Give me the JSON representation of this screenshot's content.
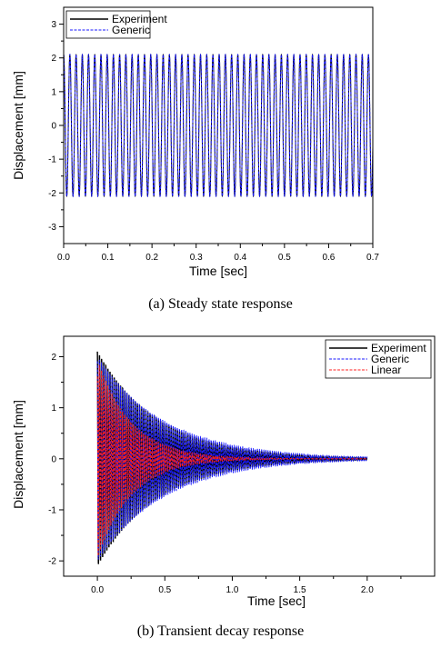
{
  "chart_data": [
    {
      "type": "line",
      "caption": "(a) Steady state response",
      "xlabel": "Time [sec]",
      "ylabel": "Displacement [mm]",
      "xlim": [
        0.0,
        0.7
      ],
      "ylim": [
        -3.5,
        3.5
      ],
      "xticks": [
        "0.0",
        "0.1",
        "0.2",
        "0.3",
        "0.4",
        "0.5",
        "0.6",
        "0.7"
      ],
      "yticks": [
        "-3",
        "-2",
        "-1",
        "0",
        "1",
        "2",
        "3"
      ],
      "legend_position": "top-left",
      "series": [
        {
          "name": "Experiment",
          "color": "#000000",
          "style": "solid",
          "amplitude": 2.1,
          "frequency_hz": 71,
          "x_range": [
            0.0,
            0.7
          ]
        },
        {
          "name": "Generic",
          "color": "#1a1aff",
          "style": "dashed",
          "amplitude": 2.1,
          "frequency_hz": 71,
          "x_range": [
            0.0,
            0.7
          ]
        }
      ]
    },
    {
      "type": "line",
      "caption": "(b) Transient decay response",
      "xlabel": "Time [sec]",
      "ylabel": "Displacement [mm]",
      "xlim": [
        -0.25,
        2.5
      ],
      "ylim": [
        -2.3,
        2.4
      ],
      "xticks": [
        "0.0",
        "0.5",
        "1.0",
        "1.5",
        "2.0"
      ],
      "yticks": [
        "-2",
        "-1",
        "0",
        "1",
        "2"
      ],
      "legend_position": "top-right",
      "series": [
        {
          "name": "Experiment",
          "color": "#000000",
          "style": "solid",
          "initial_amplitude": 2.1,
          "time_constant_s": 0.45,
          "x_range": [
            0.0,
            2.0
          ]
        },
        {
          "name": "Generic",
          "color": "#1a1aff",
          "style": "dashed",
          "initial_amplitude": 2.0,
          "time_constant_s": 0.5,
          "x_range": [
            0.0,
            2.0
          ]
        },
        {
          "name": "Linear",
          "color": "#ff2020",
          "style": "dashed",
          "initial_amplitude": 1.95,
          "time_constant_s": 0.25,
          "x_range": [
            0.0,
            2.0
          ]
        }
      ]
    }
  ]
}
